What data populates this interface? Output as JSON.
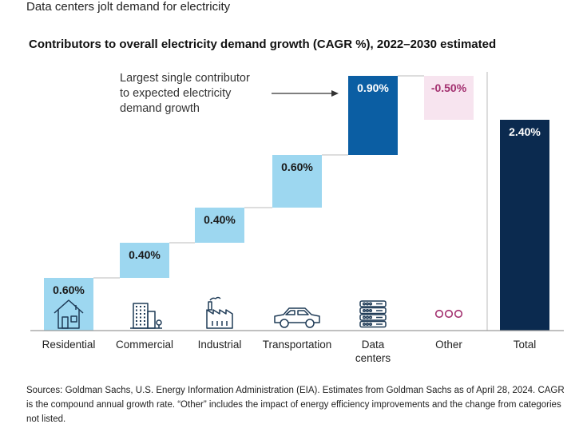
{
  "headline": "Data centers jolt demand for electricity",
  "chart_data": {
    "type": "bar",
    "subtype": "waterfall",
    "title": "Contributors to overall electricity demand growth (CAGR %), 2022–2030 estimated",
    "unit": "%",
    "ylim": [
      0,
      2.7
    ],
    "categories": [
      {
        "name": "Residential",
        "lines": [
          "Residential"
        ],
        "value": 0.6,
        "label": "0.60%",
        "kind": "increase",
        "icon": "house-icon"
      },
      {
        "name": "Commercial",
        "lines": [
          "Commercial"
        ],
        "value": 0.4,
        "label": "0.40%",
        "kind": "increase",
        "icon": "office-building-icon"
      },
      {
        "name": "Industrial",
        "lines": [
          "Industrial"
        ],
        "value": 0.4,
        "label": "0.40%",
        "kind": "increase",
        "icon": "factory-icon"
      },
      {
        "name": "Transportation",
        "lines": [
          "Transportation"
        ],
        "value": 0.6,
        "label": "0.60%",
        "kind": "increase",
        "icon": "car-icon"
      },
      {
        "name": "Data centers",
        "lines": [
          "Data",
          "centers"
        ],
        "value": 0.9,
        "label": "0.90%",
        "kind": "highlight",
        "icon": "server-rack-icon"
      },
      {
        "name": "Other",
        "lines": [
          "Other"
        ],
        "value": -0.5,
        "label": "-0.50%",
        "kind": "decrease",
        "icon": "ellipsis-icon"
      },
      {
        "name": "Total",
        "lines": [
          "Total"
        ],
        "value": 2.4,
        "label": "2.40%",
        "kind": "total",
        "icon": ""
      }
    ],
    "annotation": {
      "lines": [
        "Largest single contributor",
        "to expected electricity",
        "demand growth"
      ],
      "target": "Data centers"
    },
    "colors": {
      "increase": "#9dd7f0",
      "highlight": "#0b5ea3",
      "decrease": "#f7e4ef",
      "total": "#0b2a4f",
      "icon": "#1f3b57",
      "other_icon": "#a3306f",
      "connector": "#bbbbbb",
      "axis": "#9a9a9a"
    }
  },
  "footnote": "Sources: Goldman Sachs, U.S. Energy Information Administration (EIA). Estimates from Goldman Sachs as of April 28, 2024. CAGR is the compound annual growth rate. “Other” includes the impact of energy efficiency improvements and the change from categories not listed."
}
